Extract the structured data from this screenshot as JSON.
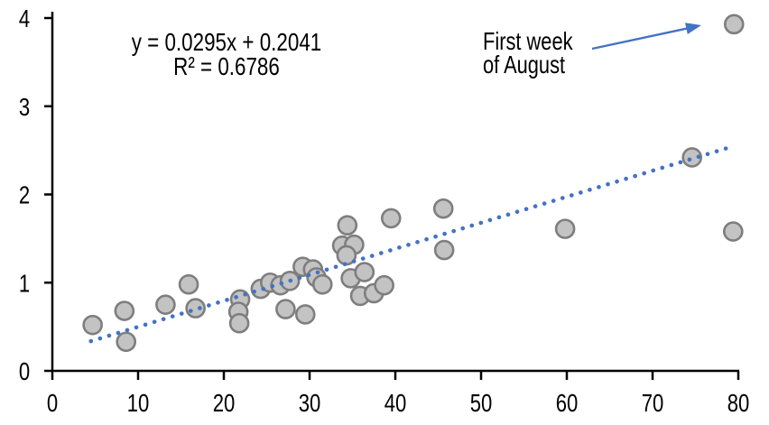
{
  "chart_data": {
    "type": "scatter",
    "title": "",
    "xlabel": "",
    "ylabel": "",
    "xlim": [
      0,
      80
    ],
    "ylim": [
      0,
      4
    ],
    "x_ticks": [
      0,
      10,
      20,
      30,
      40,
      50,
      60,
      70,
      80
    ],
    "y_ticks": [
      0,
      1,
      2,
      3,
      4
    ],
    "grid": false,
    "legend": false,
    "points": [
      [
        4.7,
        0.52
      ],
      [
        8.4,
        0.68
      ],
      [
        8.6,
        0.33
      ],
      [
        13.2,
        0.75
      ],
      [
        15.9,
        0.98
      ],
      [
        16.7,
        0.71
      ],
      [
        21.9,
        0.81
      ],
      [
        21.7,
        0.67
      ],
      [
        21.8,
        0.54
      ],
      [
        24.3,
        0.93
      ],
      [
        25.4,
        1.0
      ],
      [
        26.6,
        0.97
      ],
      [
        27.7,
        1.02
      ],
      [
        27.2,
        0.7
      ],
      [
        29.5,
        0.64
      ],
      [
        29.2,
        1.18
      ],
      [
        30.4,
        1.15
      ],
      [
        30.8,
        1.06
      ],
      [
        31.5,
        0.98
      ],
      [
        33.8,
        1.42
      ],
      [
        34.4,
        1.65
      ],
      [
        35.2,
        1.43
      ],
      [
        34.3,
        1.31
      ],
      [
        34.8,
        1.05
      ],
      [
        36.4,
        1.12
      ],
      [
        35.9,
        0.85
      ],
      [
        37.5,
        0.88
      ],
      [
        38.7,
        0.97
      ],
      [
        39.5,
        1.73
      ],
      [
        45.6,
        1.84
      ],
      [
        45.7,
        1.37
      ],
      [
        59.8,
        1.61
      ],
      [
        74.6,
        2.42
      ],
      [
        79.4,
        1.58
      ],
      [
        79.5,
        3.93
      ]
    ],
    "trendline": {
      "slope": 0.0295,
      "intercept": 0.2041,
      "x_start": 4.5,
      "x_end": 79.5,
      "style": "dotted"
    },
    "equation": {
      "line1": "y = 0.0295x + 0.2041",
      "line2": "R² = 0.6786"
    },
    "annotation": {
      "line1": "First week",
      "line2": "of August",
      "target_point": [
        79.5,
        3.93
      ]
    },
    "colors": {
      "point_fill": "#c3c3c3",
      "point_stroke": "#7e7e7e",
      "trendline": "#4472c4",
      "arrow": "#4472c4",
      "axis": "#000000",
      "text": "#000000",
      "background": "#ffffff"
    }
  }
}
